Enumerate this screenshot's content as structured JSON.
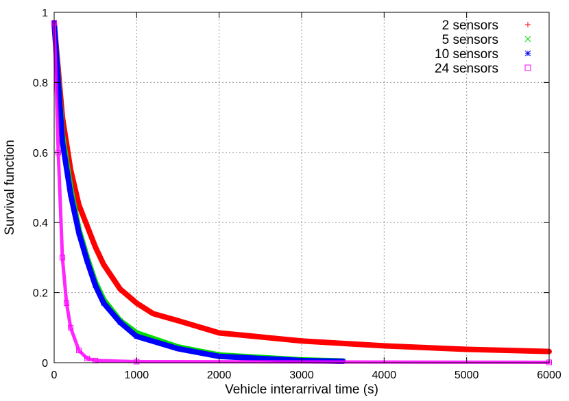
{
  "chart_data": {
    "type": "scatter",
    "title": "",
    "xlabel": "Vehicle interarrival time (s)",
    "ylabel": "Survival function",
    "xlim": [
      0,
      6000
    ],
    "ylim": [
      0,
      1
    ],
    "xticks": [
      "0",
      "1000",
      "2000",
      "3000",
      "4000",
      "5000",
      "6000"
    ],
    "yticks": [
      "0",
      "0.2",
      "0.4",
      "0.6",
      "0.8",
      "1"
    ],
    "grid": true,
    "legend_position": "top-right",
    "series": [
      {
        "name": "2 sensors",
        "color": "#ff0000",
        "marker": "plus",
        "x": [
          0,
          100,
          200,
          300,
          400,
          500,
          600,
          800,
          1000,
          1200,
          1500,
          2000,
          3000,
          4000,
          5000,
          6000
        ],
        "y": [
          0.97,
          0.7,
          0.55,
          0.45,
          0.39,
          0.33,
          0.28,
          0.21,
          0.17,
          0.14,
          0.12,
          0.085,
          0.062,
          0.048,
          0.038,
          0.032
        ]
      },
      {
        "name": "5 sensors",
        "color": "#00dd00",
        "marker": "cross",
        "x": [
          0,
          100,
          200,
          300,
          400,
          500,
          600,
          800,
          1000,
          1500,
          2000,
          3000,
          3500
        ],
        "y": [
          0.97,
          0.65,
          0.5,
          0.38,
          0.3,
          0.23,
          0.18,
          0.12,
          0.085,
          0.045,
          0.022,
          0.008,
          0.005
        ]
      },
      {
        "name": "10 sensors",
        "color": "#0000ff",
        "marker": "star",
        "x": [
          0,
          100,
          200,
          300,
          400,
          500,
          600,
          800,
          1000,
          1500,
          2000,
          3000,
          3500
        ],
        "y": [
          0.97,
          0.63,
          0.48,
          0.37,
          0.29,
          0.22,
          0.17,
          0.115,
          0.075,
          0.04,
          0.018,
          0.006,
          0.004
        ]
      },
      {
        "name": "24 sensors",
        "color": "#ff00ff",
        "marker": "square",
        "x": [
          0,
          50,
          100,
          150,
          200,
          300,
          400,
          500,
          1000,
          6000
        ],
        "y": [
          0.97,
          0.6,
          0.3,
          0.17,
          0.1,
          0.035,
          0.012,
          0.006,
          0.003,
          0.001
        ]
      }
    ]
  }
}
